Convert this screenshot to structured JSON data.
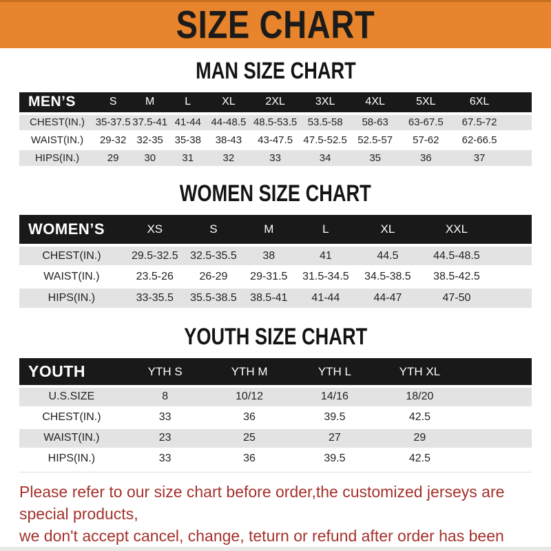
{
  "banner": {
    "title": "SIZE CHART"
  },
  "colors": {
    "banner_orange": "#E8852C",
    "banner_border": "#C8701E",
    "header_black": "#191919",
    "row_gray": "#E3E3E3",
    "row_white": "#FFFFFF",
    "disclaimer_red": "#A3312B"
  },
  "sections": [
    {
      "heading": "MAN SIZE CHART",
      "header_label": "MEN’S",
      "columns": [
        "S",
        "M",
        "L",
        "XL",
        "2XL",
        "3XL",
        "4XL",
        "5XL",
        "6XL"
      ],
      "rows": [
        {
          "label": "CHEST(IN.)",
          "values": [
            "35-37.5",
            "37.5-41",
            "41-44",
            "44-48.5",
            "48.5-53.5",
            "53.5-58",
            "58-63",
            "63-67.5",
            "67.5-72"
          ]
        },
        {
          "label": "WAIST(IN.)",
          "values": [
            "29-32",
            "32-35",
            "35-38",
            "38-43",
            "43-47.5",
            "47.5-52.5",
            "52.5-57",
            "57-62",
            "62-66.5"
          ]
        },
        {
          "label": "HIPS(IN.)",
          "values": [
            "29",
            "30",
            "31",
            "32",
            "33",
            "34",
            "35",
            "36",
            "37"
          ]
        }
      ]
    },
    {
      "heading": "WOMEN SIZE CHART",
      "header_label": "WOMEN’S",
      "columns": [
        "XS",
        "S",
        "M",
        "L",
        "XL",
        "XXL"
      ],
      "rows": [
        {
          "label": "CHEST(IN.)",
          "values": [
            "29.5-32.5",
            "32.5-35.5",
            "38",
            "41",
            "44.5",
            "44.5-48.5"
          ]
        },
        {
          "label": "WAIST(IN.)",
          "values": [
            "23.5-26",
            "26-29",
            "29-31.5",
            "31.5-34.5",
            "34.5-38.5",
            "38.5-42.5"
          ]
        },
        {
          "label": "HIPS(IN.)",
          "values": [
            "33-35.5",
            "35.5-38.5",
            "38.5-41",
            "41-44",
            "44-47",
            "47-50"
          ]
        }
      ]
    },
    {
      "heading": "YOUTH SIZE CHART",
      "header_label": "YOUTH",
      "columns": [
        "YTH S",
        "YTH M",
        "YTH L",
        "YTH XL"
      ],
      "rows": [
        {
          "label": "U.S.SIZE",
          "values": [
            "8",
            "10/12",
            "14/16",
            "18/20"
          ]
        },
        {
          "label": "CHEST(IN.)",
          "values": [
            "33",
            "36",
            "39.5",
            "42.5"
          ]
        },
        {
          "label": "WAIST(IN.)",
          "values": [
            "23",
            "25",
            "27",
            "29"
          ]
        },
        {
          "label": "HIPS(IN.)",
          "values": [
            "33",
            "36",
            "39.5",
            "42.5"
          ]
        }
      ]
    }
  ],
  "footer": {
    "line1": "Please refer to our size chart before order,the customized jerseys are special products,",
    "line2": "we don't accept cancel, change, teturn or refund after order has been placed!"
  }
}
